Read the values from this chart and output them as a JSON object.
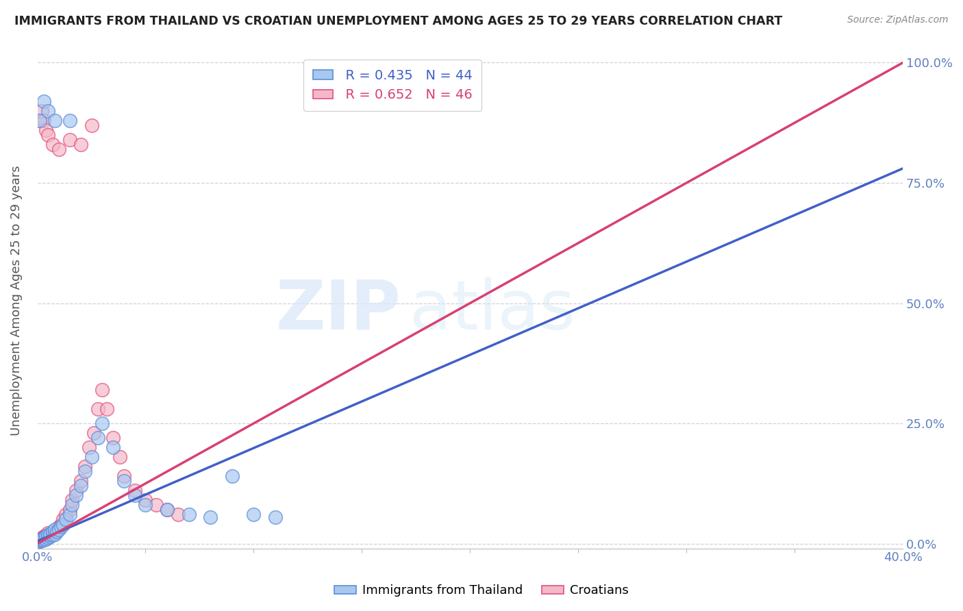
{
  "title": "IMMIGRANTS FROM THAILAND VS CROATIAN UNEMPLOYMENT AMONG AGES 25 TO 29 YEARS CORRELATION CHART",
  "source": "Source: ZipAtlas.com",
  "ylabel": "Unemployment Among Ages 25 to 29 years",
  "legend_blue_r": "R = 0.435",
  "legend_blue_n": "N = 44",
  "legend_pink_r": "R = 0.652",
  "legend_pink_n": "N = 46",
  "blue_fill": "#a8c8f0",
  "pink_fill": "#f5b8c8",
  "blue_edge": "#5b8dd9",
  "pink_edge": "#e05080",
  "blue_line_color": "#4060c8",
  "pink_line_color": "#d84070",
  "ref_line_color": "#c8c8c8",
  "blue_scatter": [
    [
      0.001,
      0.005
    ],
    [
      0.001,
      0.008
    ],
    [
      0.002,
      0.006
    ],
    [
      0.002,
      0.01
    ],
    [
      0.003,
      0.008
    ],
    [
      0.003,
      0.012
    ],
    [
      0.004,
      0.01
    ],
    [
      0.004,
      0.015
    ],
    [
      0.005,
      0.012
    ],
    [
      0.005,
      0.018
    ],
    [
      0.006,
      0.015
    ],
    [
      0.006,
      0.02
    ],
    [
      0.007,
      0.018
    ],
    [
      0.007,
      0.025
    ],
    [
      0.008,
      0.02
    ],
    [
      0.008,
      0.03
    ],
    [
      0.009,
      0.025
    ],
    [
      0.01,
      0.03
    ],
    [
      0.011,
      0.035
    ],
    [
      0.012,
      0.04
    ],
    [
      0.013,
      0.05
    ],
    [
      0.015,
      0.06
    ],
    [
      0.016,
      0.08
    ],
    [
      0.018,
      0.1
    ],
    [
      0.02,
      0.12
    ],
    [
      0.022,
      0.15
    ],
    [
      0.025,
      0.18
    ],
    [
      0.028,
      0.22
    ],
    [
      0.03,
      0.25
    ],
    [
      0.035,
      0.2
    ],
    [
      0.04,
      0.13
    ],
    [
      0.045,
      0.1
    ],
    [
      0.05,
      0.08
    ],
    [
      0.06,
      0.07
    ],
    [
      0.07,
      0.06
    ],
    [
      0.08,
      0.055
    ],
    [
      0.001,
      0.88
    ],
    [
      0.003,
      0.92
    ],
    [
      0.005,
      0.9
    ],
    [
      0.008,
      0.88
    ],
    [
      0.015,
      0.88
    ],
    [
      0.09,
      0.14
    ],
    [
      0.1,
      0.06
    ],
    [
      0.11,
      0.055
    ]
  ],
  "pink_scatter": [
    [
      0.001,
      0.005
    ],
    [
      0.001,
      0.01
    ],
    [
      0.002,
      0.008
    ],
    [
      0.002,
      0.012
    ],
    [
      0.003,
      0.01
    ],
    [
      0.003,
      0.015
    ],
    [
      0.004,
      0.012
    ],
    [
      0.004,
      0.018
    ],
    [
      0.005,
      0.015
    ],
    [
      0.005,
      0.022
    ],
    [
      0.006,
      0.018
    ],
    [
      0.007,
      0.025
    ],
    [
      0.008,
      0.022
    ],
    [
      0.009,
      0.03
    ],
    [
      0.01,
      0.035
    ],
    [
      0.011,
      0.04
    ],
    [
      0.012,
      0.05
    ],
    [
      0.013,
      0.06
    ],
    [
      0.015,
      0.07
    ],
    [
      0.016,
      0.09
    ],
    [
      0.018,
      0.11
    ],
    [
      0.02,
      0.13
    ],
    [
      0.022,
      0.16
    ],
    [
      0.024,
      0.2
    ],
    [
      0.026,
      0.23
    ],
    [
      0.028,
      0.28
    ],
    [
      0.03,
      0.32
    ],
    [
      0.032,
      0.28
    ],
    [
      0.035,
      0.22
    ],
    [
      0.038,
      0.18
    ],
    [
      0.04,
      0.14
    ],
    [
      0.045,
      0.11
    ],
    [
      0.05,
      0.09
    ],
    [
      0.055,
      0.08
    ],
    [
      0.06,
      0.07
    ],
    [
      0.065,
      0.06
    ],
    [
      0.001,
      0.88
    ],
    [
      0.002,
      0.9
    ],
    [
      0.003,
      0.88
    ],
    [
      0.004,
      0.86
    ],
    [
      0.005,
      0.85
    ],
    [
      0.007,
      0.83
    ],
    [
      0.01,
      0.82
    ],
    [
      0.015,
      0.84
    ],
    [
      0.02,
      0.83
    ],
    [
      0.025,
      0.87
    ]
  ],
  "blue_line_x": [
    0.0,
    0.4
  ],
  "blue_line_y": [
    0.005,
    0.78
  ],
  "pink_line_x": [
    0.0,
    0.4
  ],
  "pink_line_y": [
    0.0,
    1.0
  ],
  "ref_line_x": [
    0.0,
    0.4
  ],
  "ref_line_y": [
    0.0,
    1.0
  ],
  "xlim": [
    0.0,
    0.4
  ],
  "ylim": [
    -0.01,
    1.02
  ],
  "x_ticks_minor": [
    0.05,
    0.1,
    0.15,
    0.2,
    0.25,
    0.3,
    0.35
  ],
  "y_ticks": [
    0.0,
    0.25,
    0.5,
    0.75,
    1.0
  ],
  "background_color": "#ffffff",
  "grid_color": "#d0d0d8",
  "tick_color": "#6080c0"
}
